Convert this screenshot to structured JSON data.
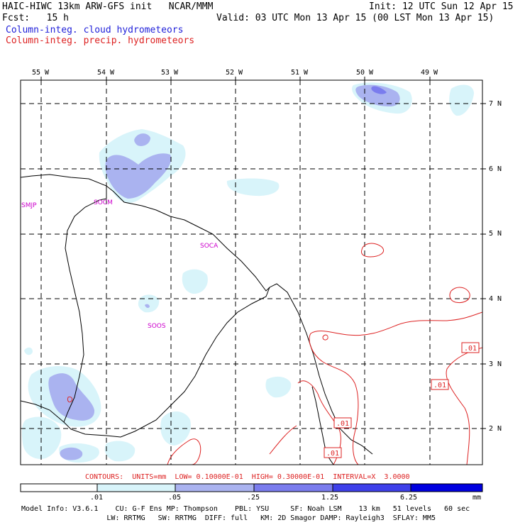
{
  "header": {
    "title_left": "HAIC-HIWC 13km ARW-GFS init   NCAR/MMM",
    "init": "Init: 12 UTC Sun 12 Apr 15",
    "fcst": "Fcst:   15 h",
    "valid": "Valid: 03 UTC Mon 13 Apr 15 (00 LST Mon 13 Apr 15)",
    "legend_cloud": "Column-integ. cloud hydrometeors",
    "legend_precip": "Column-integ. precip. hydrometeors"
  },
  "map": {
    "lon_labels": [
      "55 W",
      "54 W",
      "53 W",
      "52 W",
      "51 W",
      "50 W",
      "49 W"
    ],
    "lat_labels": [
      "7 N",
      "6 N",
      "5 N",
      "4 N",
      "3 N",
      "2 N"
    ],
    "stations": [
      "SMJP",
      "SOCM",
      "SOCA",
      "SOOS"
    ],
    "contour_labels": [
      ".01",
      ".01",
      ".01",
      ".01"
    ]
  },
  "contours_note": "CONTOURS:  UNITS=mm  LOW= 0.10000E-01  HIGH= 0.30000E-01  INTERVAL=X  3.0000",
  "colorbar": {
    "ticks": [
      ".01",
      ".05",
      ".25",
      "1.25",
      "6.25"
    ],
    "units": "mm",
    "colors": [
      "#ffffff",
      "#d8f4fa",
      "#aab3f0",
      "#7a7cee",
      "#3e40ea",
      "#0000e0"
    ]
  },
  "footer": {
    "line1": "Model Info: V3.6.1    CU: G-F Ens MP: Thompson    PBL: YSU     SF: Noah LSM    13 km   51 levels   60 sec",
    "line2": "                    LW: RRTMG   SW: RRTMG  DIFF: full   KM: 2D Smagor DAMP: Rayleigh3  SFLAY: MM5"
  }
}
